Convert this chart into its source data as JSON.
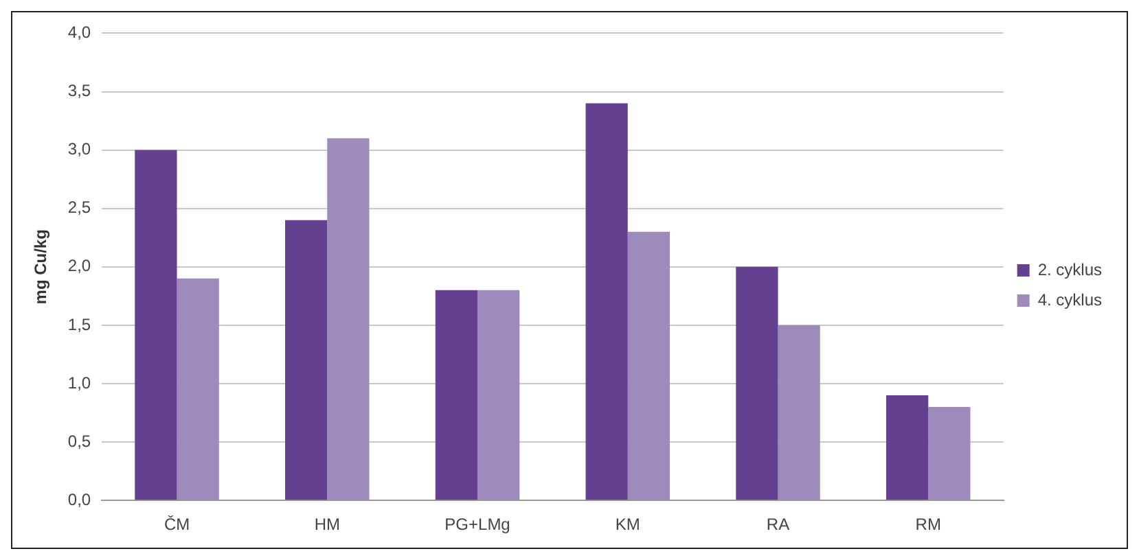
{
  "chart_data": {
    "type": "bar",
    "ylabel": "mg Cu/kg",
    "categories": [
      "ČM",
      "HM",
      "PG+LMg",
      "KM",
      "RA",
      "RM"
    ],
    "series": [
      {
        "name": "2. cyklus",
        "color": "#634190",
        "values": [
          3.0,
          2.4,
          1.8,
          3.4,
          2.0,
          0.9
        ]
      },
      {
        "name": "4. cyklus",
        "color": "#9c8bbb",
        "values": [
          1.9,
          3.1,
          1.8,
          2.3,
          1.5,
          0.8
        ]
      }
    ],
    "ylim": [
      0,
      4
    ],
    "yticks": [
      {
        "value": 0,
        "label": "0,0"
      },
      {
        "value": 0.5,
        "label": "0,5"
      },
      {
        "value": 1,
        "label": "1,0"
      },
      {
        "value": 1.5,
        "label": "1,5"
      },
      {
        "value": 2,
        "label": "2,0"
      },
      {
        "value": 2.5,
        "label": "2,5"
      },
      {
        "value": 3,
        "label": "3,0"
      },
      {
        "value": 3.5,
        "label": "3,5"
      },
      {
        "value": 4,
        "label": "4,0"
      }
    ],
    "grid": "y",
    "legend": "right"
  }
}
